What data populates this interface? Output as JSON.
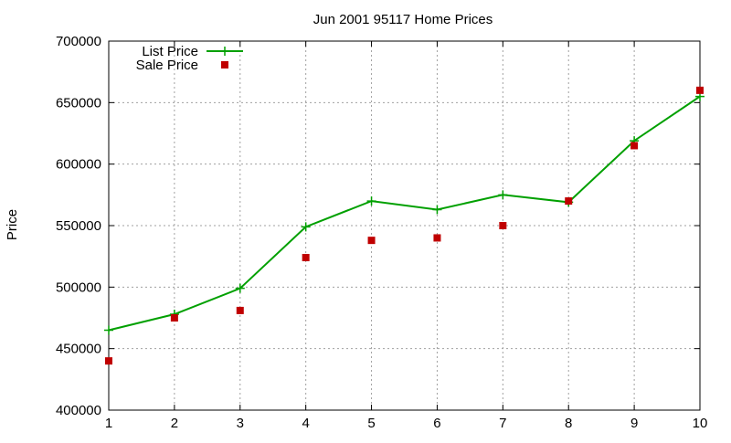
{
  "colors": {
    "background": "#ffffff",
    "list_price": "#00a000",
    "sale_price": "#c00000",
    "grid": "#a0a0a0",
    "axis": "#000000"
  },
  "chart_data": {
    "type": "line",
    "title": "Jun 2001 95117 Home Prices",
    "xlabel": "",
    "ylabel": "Price",
    "x": [
      1,
      2,
      3,
      4,
      5,
      6,
      7,
      8,
      9,
      10
    ],
    "xlim": [
      1,
      10
    ],
    "ylim": [
      400000,
      700000
    ],
    "x_ticks": [
      "1",
      "2",
      "3",
      "4",
      "5",
      "6",
      "7",
      "8",
      "9",
      "10"
    ],
    "y_ticks": [
      "400000",
      "450000",
      "500000",
      "550000",
      "600000",
      "650000",
      "700000"
    ],
    "y_tick_values": [
      400000,
      450000,
      500000,
      550000,
      600000,
      650000,
      700000
    ],
    "grid": true,
    "legend_position": "top-left",
    "series": [
      {
        "name": "List Price",
        "style": "line-with-plus-markers",
        "values": [
          465000,
          478000,
          499000,
          549000,
          570000,
          563000,
          575000,
          569000,
          619000,
          655000
        ]
      },
      {
        "name": "Sale Price",
        "style": "square-points",
        "values": [
          440000,
          475000,
          481000,
          524000,
          538000,
          540000,
          550000,
          570000,
          615000,
          660000
        ]
      }
    ]
  }
}
